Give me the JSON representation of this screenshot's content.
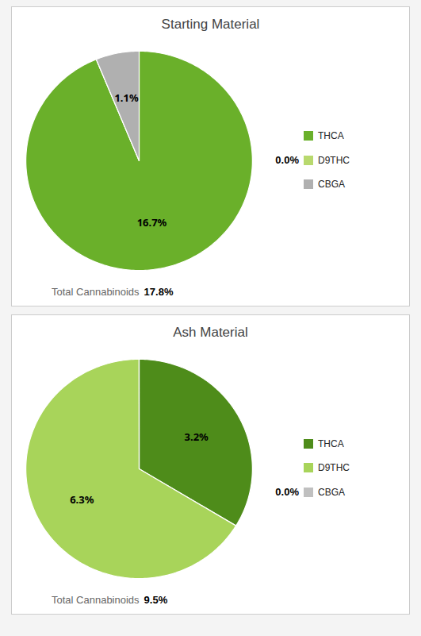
{
  "chart_data": [
    {
      "type": "pie",
      "title": "Starting Material",
      "categories": [
        "THCA",
        "D9THC",
        "CBGA"
      ],
      "values": [
        16.7,
        0.001,
        1.1
      ],
      "value_labels": [
        "16.7%",
        "0.0%",
        "1.1%"
      ],
      "colors": [
        "#6ab02a",
        "#b8d96e",
        "#b0b0b0"
      ],
      "data_labels": true,
      "legend": "right",
      "annotations": [
        "Total Cannabinoids",
        "17.8%"
      ]
    },
    {
      "type": "pie",
      "title": "Ash Material",
      "categories": [
        "THCA",
        "D9THC",
        "CBGA"
      ],
      "values": [
        3.2,
        6.3,
        0.001
      ],
      "value_labels": [
        "3.2%",
        "6.3%",
        "0.0%"
      ],
      "colors": [
        "#4e8c1a",
        "#a8d45a",
        "#c0c0c0"
      ],
      "data_labels": true,
      "legend": "right",
      "annotations": [
        "Total Cannabinoids",
        "9.5%"
      ]
    }
  ]
}
